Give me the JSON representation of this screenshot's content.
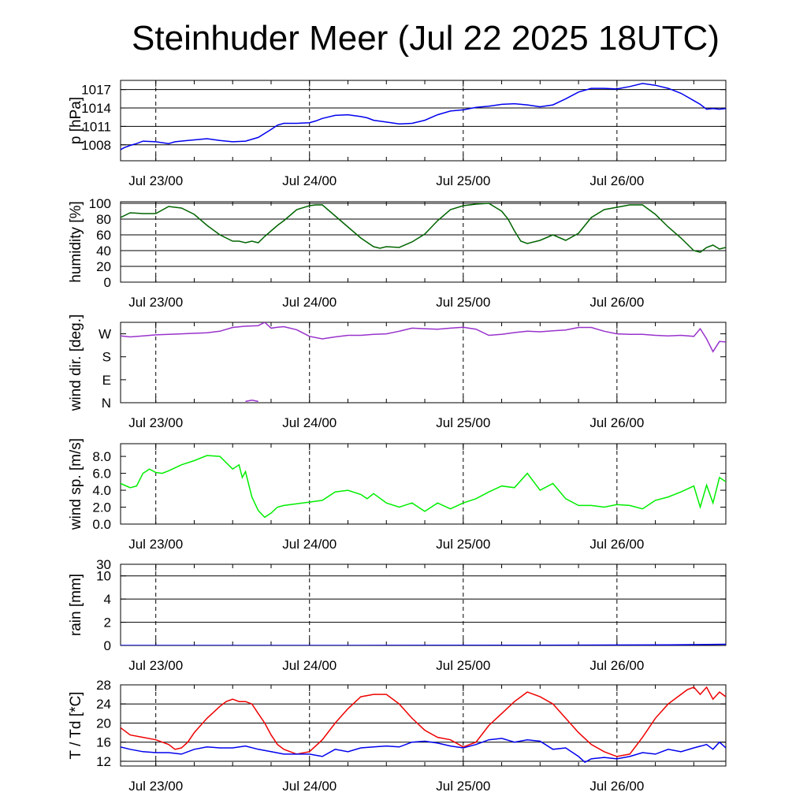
{
  "title": "Steinhuder Meer (Jul 22 2025 18UTC)",
  "chart_data": [
    {
      "type": "line",
      "ylabel": "p [hPa]",
      "ylim": [
        1005.4,
        1018.5
      ],
      "yticks": [
        1008,
        1011,
        1014,
        1017
      ],
      "grid": true,
      "color": "#0000ee",
      "x_categories": [
        "Jul 23/00",
        "Jul 24/00",
        "Jul 25/00",
        "Jul 26/00"
      ],
      "x_range_hours": [
        -5.5,
        89.0
      ],
      "series": [
        {
          "x": [
            -5.5,
            -5,
            -4,
            -3,
            -2,
            0,
            2,
            3,
            5,
            7,
            8,
            10,
            12,
            14,
            16,
            18,
            19,
            20,
            22,
            24,
            25,
            26,
            28,
            30,
            32,
            33,
            34,
            36,
            38,
            40,
            42,
            44,
            46,
            48,
            50,
            52,
            54,
            56,
            58,
            60,
            62,
            64,
            66,
            68,
            70,
            72,
            74,
            76,
            78,
            80,
            82,
            84,
            85,
            86,
            87,
            88,
            89
          ],
          "y": [
            1007.2,
            1007.5,
            1007.9,
            1008.2,
            1008.6,
            1008.5,
            1008.2,
            1008.5,
            1008.7,
            1008.9,
            1009.0,
            1008.7,
            1008.5,
            1008.6,
            1009.2,
            1010.5,
            1011.2,
            1011.5,
            1011.5,
            1011.6,
            1011.9,
            1012.3,
            1012.8,
            1012.9,
            1012.6,
            1012.4,
            1012.0,
            1011.7,
            1011.4,
            1011.5,
            1012.0,
            1012.9,
            1013.5,
            1013.7,
            1014.1,
            1014.3,
            1014.6,
            1014.7,
            1014.5,
            1014.2,
            1014.5,
            1015.5,
            1016.6,
            1017.2,
            1017.2,
            1017.1,
            1017.5,
            1018.0,
            1017.7,
            1017.2,
            1016.4,
            1015.2,
            1014.6,
            1013.8,
            1013.9,
            1013.8,
            1013.9
          ]
        }
      ]
    },
    {
      "type": "line",
      "ylabel": "humidity [%]",
      "ylim": [
        0,
        102
      ],
      "yticks": [
        0,
        20,
        40,
        60,
        80,
        100
      ],
      "grid": true,
      "color": "#006400",
      "x_categories": [
        "Jul 23/00",
        "Jul 24/00",
        "Jul 25/00",
        "Jul 26/00"
      ],
      "x_range_hours": [
        -5.5,
        89.0
      ],
      "series": [
        {
          "x": [
            -5.5,
            -4,
            -2,
            0,
            2,
            4,
            6,
            8,
            10,
            12,
            13,
            14,
            15,
            16,
            17,
            18,
            19,
            20,
            22,
            24,
            25,
            26,
            28,
            30,
            32,
            34,
            35,
            36,
            38,
            40,
            42,
            44,
            46,
            48,
            50,
            52,
            54,
            55,
            56,
            57,
            58,
            60,
            62,
            64,
            66,
            68,
            70,
            72,
            74,
            76,
            78,
            80,
            82,
            83,
            84,
            85,
            86,
            87,
            88,
            89
          ],
          "y": [
            82,
            88,
            87,
            87,
            96,
            94,
            86,
            72,
            60,
            52,
            52,
            50,
            52,
            50,
            58,
            65,
            72,
            78,
            92,
            97,
            98,
            98,
            84,
            70,
            56,
            45,
            43,
            45,
            44,
            51,
            61,
            78,
            92,
            97,
            99,
            100,
            90,
            80,
            65,
            52,
            49,
            53,
            60,
            53,
            62,
            82,
            92,
            95,
            98,
            98,
            86,
            70,
            56,
            48,
            40,
            38,
            44,
            47,
            42,
            44
          ]
        }
      ]
    },
    {
      "type": "line",
      "ylabel": "wind dir. [deg.]",
      "ylim": [
        0,
        315
      ],
      "yticks_labels": [
        "N",
        "E",
        "S",
        "W"
      ],
      "yticks": [
        0,
        90,
        180,
        270
      ],
      "grid": false,
      "color": "#9932cc",
      "x_categories": [
        "Jul 23/00",
        "Jul 24/00",
        "Jul 25/00",
        "Jul 26/00"
      ],
      "x_range_hours": [
        -5.5,
        89.0
      ],
      "series": [
        {
          "x": [
            -5.5,
            -4,
            -2,
            0,
            2,
            4,
            6,
            8,
            10,
            12,
            14,
            16,
            17,
            18,
            19,
            20,
            22,
            24,
            26,
            28,
            30,
            32,
            34,
            36,
            38,
            40,
            42,
            44,
            46,
            48,
            50,
            52,
            54,
            56,
            58,
            60,
            62,
            64,
            66,
            68,
            70,
            72,
            74,
            76,
            78,
            80,
            82,
            84,
            85,
            86,
            87,
            88,
            89
          ],
          "y": [
            262,
            258,
            262,
            266,
            268,
            270,
            272,
            274,
            280,
            295,
            300,
            302,
            315,
            292,
            296,
            298,
            286,
            260,
            250,
            258,
            264,
            264,
            268,
            270,
            280,
            292,
            290,
            288,
            292,
            296,
            288,
            264,
            268,
            275,
            280,
            278,
            282,
            285,
            295,
            295,
            280,
            270,
            268,
            268,
            264,
            262,
            264,
            260,
            290,
            250,
            200,
            240,
            238
          ]
        },
        {
          "x": [
            14,
            15,
            16
          ],
          "y": [
            5,
            10,
            5
          ]
        }
      ]
    },
    {
      "type": "line",
      "ylabel": "wind sp. [m/s]",
      "ylim": [
        0,
        9.5
      ],
      "yticks": [
        0.0,
        2.0,
        4.0,
        6.0,
        8.0
      ],
      "grid": false,
      "color": "#00ee00",
      "x_categories": [
        "Jul 23/00",
        "Jul 24/00",
        "Jul 25/00",
        "Jul 26/00"
      ],
      "x_range_hours": [
        -5.5,
        89.0
      ],
      "series": [
        {
          "x": [
            -5.5,
            -4,
            -3,
            -2,
            -1,
            0,
            1,
            2,
            4,
            6,
            8,
            10,
            12,
            13,
            13.5,
            14,
            15,
            16,
            17,
            18,
            19,
            20,
            22,
            24,
            26,
            28,
            30,
            32,
            33,
            34,
            36,
            38,
            40,
            42,
            44,
            46,
            48,
            50,
            52,
            54,
            56,
            58,
            60,
            62,
            64,
            66,
            68,
            70,
            72,
            74,
            76,
            78,
            80,
            82,
            84,
            85,
            86,
            87,
            88,
            89
          ],
          "y": [
            4.8,
            4.3,
            4.5,
            6.0,
            6.5,
            6.1,
            6.0,
            6.3,
            7.0,
            7.5,
            8.1,
            8.0,
            6.5,
            7.0,
            5.5,
            6.2,
            3.2,
            1.6,
            0.8,
            1.3,
            2.0,
            2.2,
            2.4,
            2.6,
            2.8,
            3.8,
            4.0,
            3.5,
            3.0,
            3.6,
            2.5,
            2.0,
            2.5,
            1.5,
            2.5,
            1.8,
            2.5,
            3.0,
            3.8,
            4.5,
            4.3,
            6.0,
            4.0,
            4.8,
            3.0,
            2.2,
            2.2,
            2.0,
            2.3,
            2.2,
            1.8,
            2.8,
            3.2,
            3.8,
            4.5,
            2.0,
            4.6,
            2.5,
            5.5,
            5.0
          ]
        }
      ]
    },
    {
      "type": "line",
      "ylabel": "rain [mm]",
      "yticks_labels": [
        "0",
        "2",
        "4",
        "10",
        "30"
      ],
      "yticks": [
        0,
        2,
        4,
        10,
        30
      ],
      "grid": true,
      "color": "#0000ee",
      "x_categories": [
        "Jul 23/00",
        "Jul 24/00",
        "Jul 25/00",
        "Jul 26/00"
      ],
      "x_range_hours": [
        -5.5,
        89.0
      ],
      "series": [
        {
          "x": [
            -5.5,
            10,
            30,
            60,
            80,
            89
          ],
          "y": [
            0,
            0,
            0,
            0.02,
            0.05,
            0.1
          ]
        }
      ]
    },
    {
      "type": "line",
      "ylabel": "T / Td [*C]",
      "ylim": [
        11.0,
        28.0
      ],
      "yticks": [
        12,
        16,
        20,
        24,
        28
      ],
      "grid": true,
      "x_categories": [
        "Jul 23/00",
        "Jul 24/00",
        "Jul 25/00",
        "Jul 26/00"
      ],
      "x_range_hours": [
        -5.5,
        89.0
      ],
      "series": [
        {
          "color": "#ee0000",
          "x": [
            -5.5,
            -4,
            -2,
            0,
            2,
            3,
            4,
            5,
            6,
            8,
            10,
            11,
            12,
            13,
            14,
            15,
            16,
            17,
            18,
            19,
            20,
            22,
            24,
            26,
            28,
            30,
            32,
            34,
            36,
            38,
            40,
            42,
            44,
            46,
            48,
            50,
            52,
            54,
            56,
            58,
            60,
            62,
            64,
            66,
            68,
            70,
            71,
            72,
            74,
            76,
            78,
            80,
            82,
            83,
            84,
            85,
            86,
            87,
            88,
            89
          ],
          "y": [
            19.0,
            17.5,
            17.0,
            16.5,
            15.5,
            14.5,
            14.8,
            16.0,
            18.0,
            21.0,
            23.5,
            24.5,
            25.0,
            24.5,
            24.5,
            24.0,
            22.0,
            20.0,
            17.5,
            15.5,
            14.5,
            13.5,
            14.0,
            16.5,
            20.0,
            23.0,
            25.5,
            26.0,
            26.0,
            24.0,
            21.0,
            18.5,
            17.0,
            16.5,
            15.0,
            16.0,
            19.5,
            22.0,
            24.5,
            26.5,
            25.5,
            24.0,
            21.0,
            18.0,
            15.5,
            14.0,
            13.5,
            13.0,
            13.5,
            17.0,
            21.0,
            24.0,
            26.0,
            27.0,
            27.5,
            26.0,
            27.5,
            25.0,
            26.5,
            25.5
          ]
        },
        {
          "color": "#0000ee",
          "x": [
            -5.5,
            -4,
            -2,
            0,
            2,
            4,
            6,
            8,
            10,
            12,
            14,
            16,
            18,
            20,
            22,
            24,
            26,
            28,
            30,
            32,
            34,
            36,
            38,
            40,
            42,
            44,
            46,
            48,
            50,
            52,
            54,
            56,
            58,
            60,
            62,
            64,
            66,
            67,
            68,
            70,
            72,
            74,
            76,
            78,
            80,
            82,
            84,
            86,
            87,
            88,
            89
          ],
          "y": [
            15.0,
            14.5,
            14.0,
            13.8,
            13.8,
            13.5,
            14.5,
            15.0,
            14.8,
            14.8,
            15.2,
            14.5,
            14.0,
            13.5,
            13.5,
            13.5,
            13.0,
            14.5,
            14.0,
            14.8,
            15.0,
            15.2,
            15.0,
            16.0,
            16.2,
            15.8,
            15.2,
            14.8,
            15.5,
            16.5,
            16.8,
            16.0,
            16.5,
            16.2,
            14.5,
            14.8,
            13.0,
            11.8,
            12.5,
            12.8,
            12.5,
            13.0,
            13.8,
            13.5,
            14.5,
            14.0,
            14.8,
            15.5,
            14.5,
            16.0,
            14.8
          ]
        }
      ]
    }
  ]
}
